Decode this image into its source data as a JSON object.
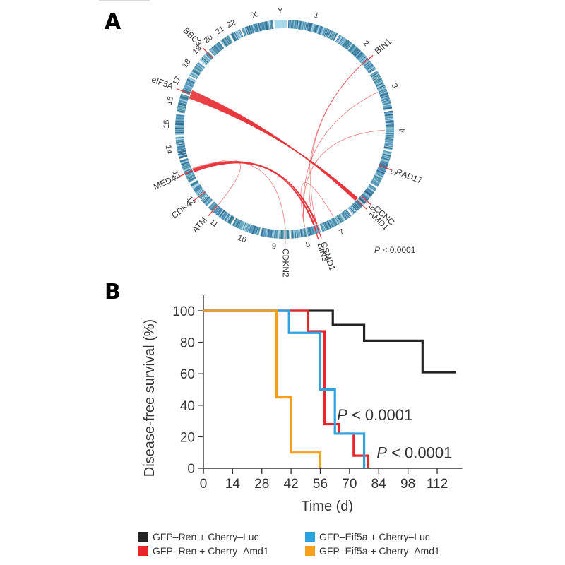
{
  "panels": {
    "a_label": "A",
    "b_label": "B"
  },
  "chart_data": [
    {
      "type": "circos",
      "panel": "A",
      "chromosomes": [
        "1",
        "2",
        "3",
        "4",
        "5",
        "6",
        "7",
        "8",
        "9",
        "10",
        "11",
        "12",
        "13",
        "14",
        "15",
        "16",
        "17",
        "18",
        "19",
        "20",
        "21",
        "22",
        "X",
        "Y"
      ],
      "gene_labels": [
        "BIN1",
        "RAD17",
        "CCNC",
        "AMD1",
        "CSMD1",
        "BIN3",
        "CDKN2",
        "ATM",
        "CDK4",
        "MED4",
        "eIF5A",
        "BBC3"
      ],
      "gene_chromosomes": {
        "BIN1": "2",
        "RAD17": "5",
        "CCNC": "6",
        "AMD1": "6",
        "CSMD1": "8",
        "BIN3": "8",
        "CDKN2": "9",
        "ATM": "11",
        "CDK4": "12",
        "MED4": "13",
        "eIF5A": "17",
        "BBC3": "19"
      },
      "links": [
        {
          "from": "eIF5A",
          "to": "AMD1",
          "weight": "heavy"
        },
        {
          "from": "MED4",
          "to": "BIN3",
          "weight": "medium"
        },
        {
          "from": "MED4",
          "to": "CSMD1",
          "weight": "medium"
        },
        {
          "from": "MED4",
          "to": "ATM",
          "weight": "light"
        },
        {
          "from": "BIN1",
          "to": "CSMD1",
          "weight": "light"
        },
        {
          "from": "BIN1",
          "to": "BIN3",
          "weight": "light"
        },
        {
          "from": "3",
          "to": "8",
          "weight": "light"
        },
        {
          "from": "4",
          "to": "8",
          "weight": "light"
        },
        {
          "from": "CDKN2",
          "to": "13",
          "weight": "light"
        },
        {
          "from": "7",
          "to": "8",
          "weight": "light"
        }
      ],
      "annotation": "P < 0.0001",
      "colors": {
        "ring": "#3d7fa8",
        "ring_alt": "#2f7f8a",
        "link": "#e8363c"
      }
    },
    {
      "type": "line",
      "subtype": "kaplan-meier",
      "panel": "B",
      "title": "",
      "xlabel": "Time (d)",
      "ylabel": "Disease-free survival (%)",
      "xlim": [
        0,
        124
      ],
      "ylim": [
        0,
        100
      ],
      "xticks": [
        0,
        14,
        28,
        42,
        56,
        70,
        84,
        98,
        112
      ],
      "yticks": [
        0,
        20,
        40,
        60,
        80,
        100
      ],
      "grid": false,
      "series": [
        {
          "name": "GFP–Ren + Cherry–Luc",
          "color": "#222222",
          "steps": [
            [
              0,
              100
            ],
            [
              62,
              91
            ],
            [
              77,
              81
            ],
            [
              105,
              61
            ]
          ],
          "end": 121
        },
        {
          "name": "GFP–Ren + Cherry–Amd1",
          "color": "#e8262a",
          "steps": [
            [
              0,
              100
            ],
            [
              50,
              87
            ],
            [
              58,
              28
            ],
            [
              65,
              22
            ],
            [
              72,
              8
            ],
            [
              79,
              0
            ]
          ],
          "end": 79
        },
        {
          "name": "GFP–Eif5a + Cherry–Luc",
          "color": "#2fa3e0",
          "steps": [
            [
              0,
              100
            ],
            [
              41,
              86
            ],
            [
              56,
              50
            ],
            [
              63,
              22
            ],
            [
              77,
              0
            ]
          ],
          "end": 77
        },
        {
          "name": "GFP–Eif5a + Cherry–Amd1",
          "color": "#f5a01a",
          "steps": [
            [
              0,
              100
            ],
            [
              35,
              45
            ],
            [
              42,
              10
            ],
            [
              56,
              0
            ]
          ],
          "end": 56
        }
      ],
      "annotations": [
        {
          "text": "P < 0.0001",
          "x": 64,
          "y": 34
        },
        {
          "text": "P < 0.0001",
          "x": 83,
          "y": 10
        }
      ],
      "legend": {
        "placement": "bottom",
        "items": [
          {
            "label": "GFP–Ren + Cherry–Luc",
            "color": "#222222"
          },
          {
            "label": "GFP–Eif5a + Cherry–Luc",
            "color": "#2fa3e0"
          },
          {
            "label": "GFP–Ren + Cherry–Amd1",
            "color": "#e8262a"
          },
          {
            "label": "GFP–Eif5a + Cherry–Amd1",
            "color": "#f5a01a"
          }
        ]
      }
    }
  ]
}
